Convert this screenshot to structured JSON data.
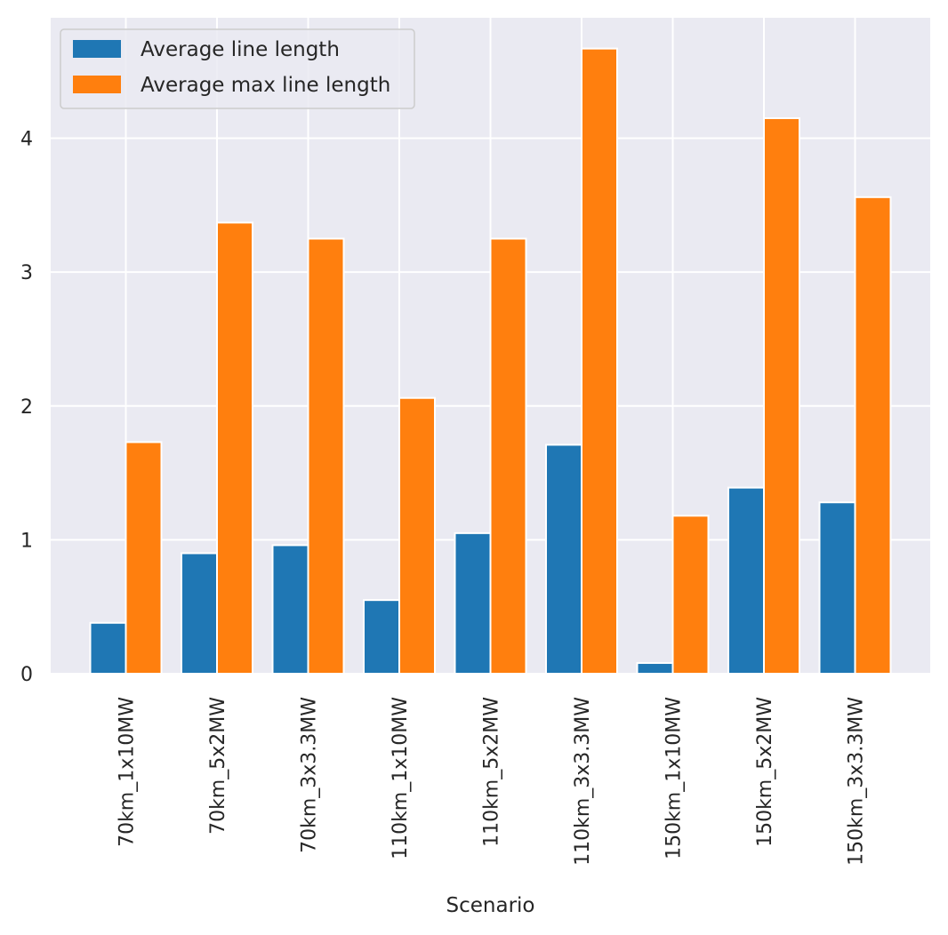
{
  "chart_data": {
    "type": "bar",
    "title": "",
    "xlabel": "Scenario",
    "ylabel": "",
    "categories": [
      "70km_1x10MW",
      "70km_5x2MW",
      "70km_3x3.3MW",
      "110km_1x10MW",
      "110km_5x2MW",
      "110km_3x3.3MW",
      "150km_1x10MW",
      "150km_5x2MW",
      "150km_3x3.3MW"
    ],
    "series": [
      {
        "name": "Average line length",
        "color": "#1f77b4",
        "values": [
          0.38,
          0.9,
          0.96,
          0.55,
          1.05,
          1.71,
          0.08,
          1.39,
          1.28
        ]
      },
      {
        "name": "Average max line length",
        "color": "#ff7f0e",
        "values": [
          1.73,
          3.37,
          3.25,
          2.06,
          3.25,
          4.67,
          1.18,
          4.15,
          3.56
        ]
      }
    ],
    "ylim": [
      0,
      4.9
    ],
    "yticks": [
      0,
      1,
      2,
      3,
      4
    ],
    "grid": true,
    "legend_position": "top-left",
    "background": "#eaeaf2",
    "grid_color": "#ffffff"
  }
}
